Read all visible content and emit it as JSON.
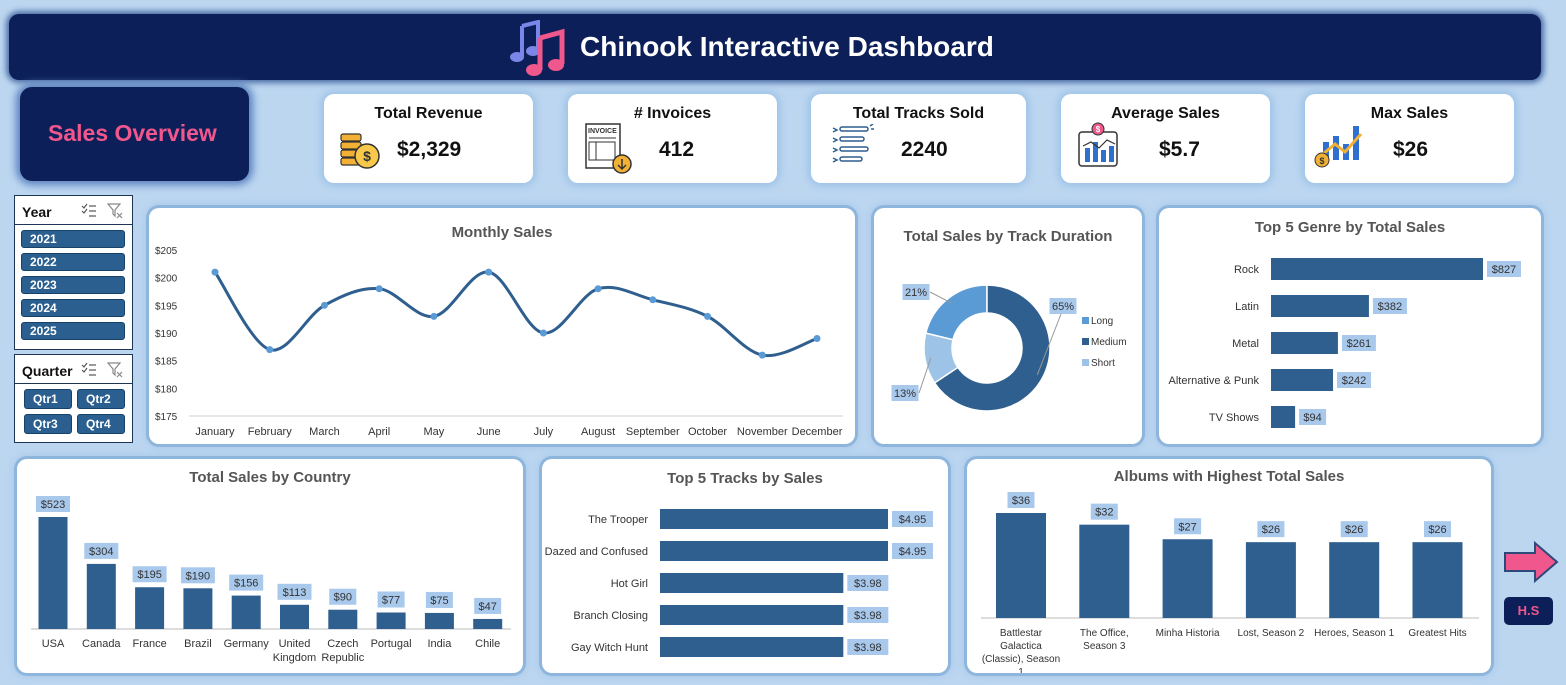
{
  "header": {
    "title": "Chinook Interactive Dashboard",
    "icon": "music-notes-icon"
  },
  "overview": {
    "label": "Sales Overview"
  },
  "kpis": [
    {
      "title": "Total Revenue",
      "value": "$2,329",
      "icon": "coins-icon"
    },
    {
      "title": "# Invoices",
      "value": "412",
      "icon": "invoice-icon"
    },
    {
      "title": "Total Tracks Sold",
      "value": "2240",
      "icon": "list-icon"
    },
    {
      "title": "Average Sales",
      "value": "$5.7",
      "icon": "bar-chart-icon"
    },
    {
      "title": "Max Sales",
      "value": "$26",
      "icon": "growth-chart-icon"
    }
  ],
  "slicers": {
    "year": {
      "title": "Year",
      "items": [
        "2021",
        "2022",
        "2023",
        "2024",
        "2025"
      ]
    },
    "quarter": {
      "title": "Quarter",
      "items": [
        "Qtr1",
        "Qtr2",
        "Qtr3",
        "Qtr4"
      ]
    }
  },
  "colors": {
    "bar": "#2e5f8f",
    "label_bg": "#a8c8ec",
    "dark": "#0c1f58",
    "accent": "#f0578c"
  },
  "nav": {
    "hs_label": "H.S",
    "arrow": "right-arrow-icon"
  },
  "chart_data": [
    {
      "id": "monthly",
      "type": "line",
      "title": "Monthly Sales",
      "categories": [
        "January",
        "February",
        "March",
        "April",
        "May",
        "June",
        "July",
        "August",
        "September",
        "October",
        "November",
        "December"
      ],
      "values": [
        201,
        187,
        195,
        198,
        193,
        201,
        190,
        198,
        196,
        193,
        186,
        189
      ],
      "ylim": [
        175,
        205
      ],
      "yticks": [
        "$175",
        "$180",
        "$185",
        "$190",
        "$195",
        "$200",
        "$205"
      ],
      "grid": false,
      "legend": "none"
    },
    {
      "id": "duration",
      "type": "pie",
      "title": "Total Sales by Track Duration",
      "categories": [
        "Long",
        "Medium",
        "Short"
      ],
      "values": [
        21,
        65,
        13
      ],
      "labels": [
        "21%",
        "65%",
        "13%"
      ],
      "colors": [
        "#5b9bd5",
        "#2e5f8f",
        "#9dc3e6"
      ],
      "legend": "right"
    },
    {
      "id": "genre",
      "type": "bar",
      "orientation": "horizontal",
      "title": "Top 5 Genre  by Total Sales",
      "categories": [
        "Rock",
        "Latin",
        "Metal",
        "Alternative & Punk",
        "TV Shows"
      ],
      "values": [
        827,
        382,
        261,
        242,
        94
      ],
      "labels": [
        "$827",
        "$382",
        "$261",
        "$242",
        "$94"
      ]
    },
    {
      "id": "country",
      "type": "bar",
      "title": "Total Sales by Country",
      "categories": [
        "USA",
        "Canada",
        "France",
        "Brazil",
        "Germany",
        "United Kingdom",
        "Czech Republic",
        "Portugal",
        "India",
        "Chile"
      ],
      "values": [
        523,
        304,
        195,
        190,
        156,
        113,
        90,
        77,
        75,
        47
      ],
      "labels": [
        "$523",
        "$304",
        "$195",
        "$190",
        "$156",
        "$113",
        "$90",
        "$77",
        "$75",
        "$47"
      ]
    },
    {
      "id": "tracks",
      "type": "bar",
      "orientation": "horizontal",
      "title": "Top 5 Tracks by Sales",
      "categories": [
        "The Trooper",
        "Dazed and Confused",
        "Hot Girl",
        "Branch Closing",
        "Gay Witch Hunt"
      ],
      "values": [
        4.95,
        4.95,
        3.98,
        3.98,
        3.98
      ],
      "labels": [
        "$4.95",
        "$4.95",
        "$3.98",
        "$3.98",
        "$3.98"
      ]
    },
    {
      "id": "albums",
      "type": "bar",
      "title": "Albums with Highest Total Sales",
      "categories": [
        "Battlestar Galactica (Classic), Season 1",
        "The Office, Season 3",
        "Minha Historia",
        "Lost, Season 2",
        "Heroes, Season 1",
        "Greatest Hits"
      ],
      "values": [
        36,
        32,
        27,
        26,
        26,
        26
      ],
      "labels": [
        "$36",
        "$32",
        "$27",
        "$26",
        "$26",
        "$26"
      ]
    }
  ]
}
